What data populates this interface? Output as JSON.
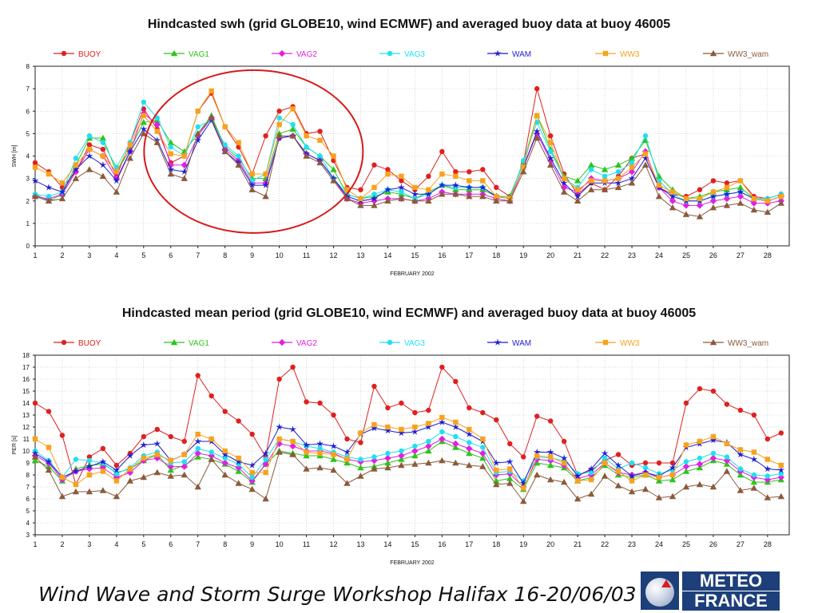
{
  "chart_data": [
    {
      "type": "line",
      "title": "Hindcasted swh (grid GLOBE10, wind ECMWF) and averaged buoy data at buoy 46005",
      "xlabel": "FEBRUARY 2002",
      "ylabel": "SWH [m]",
      "xlim": [
        1,
        28.8
      ],
      "ylim": [
        0,
        8
      ],
      "xticks": [
        1,
        2,
        3,
        4,
        5,
        6,
        7,
        8,
        9,
        10,
        11,
        12,
        13,
        14,
        15,
        16,
        17,
        18,
        19,
        20,
        21,
        22,
        23,
        24,
        25,
        26,
        27,
        28
      ],
      "yticks": [
        0,
        1,
        2,
        3,
        4,
        5,
        6,
        7,
        8
      ],
      "grid": true,
      "legend": "top",
      "annotation": "red ellipse around Feb 6 - Feb 12",
      "x": [
        1,
        1.5,
        2,
        2.5,
        3,
        3.5,
        4,
        4.5,
        5,
        5.5,
        6,
        6.5,
        7,
        7.5,
        8,
        8.5,
        9,
        9.5,
        10,
        10.5,
        11,
        11.5,
        12,
        12.5,
        13,
        13.5,
        14,
        14.5,
        15,
        15.5,
        16,
        16.5,
        17,
        17.5,
        18,
        18.5,
        19,
        19.5,
        20,
        20.5,
        21,
        21.5,
        22,
        22.5,
        23,
        23.5,
        24,
        24.5,
        25,
        25.5,
        26,
        26.5,
        27,
        27.5,
        28,
        28.5
      ],
      "series": [
        {
          "name": "BUOY",
          "color": "#e02020",
          "marker": "circle",
          "values": [
            3.7,
            3.3,
            2.6,
            3.3,
            4.5,
            4.3,
            3.1,
            4.6,
            6.1,
            5.2,
            3.7,
            4.0,
            6.0,
            6.8,
            5.3,
            4.4,
            3.2,
            4.9,
            6.0,
            6.2,
            5.0,
            5.1,
            3.8,
            2.6,
            2.5,
            3.6,
            3.4,
            2.9,
            2.5,
            3.1,
            4.2,
            3.3,
            3.3,
            3.4,
            2.6,
            2.2,
            3.7,
            7.0,
            4.9,
            3.2,
            2.3,
            2.8,
            2.5,
            3.1,
            3.9,
            4.1,
            2.6,
            2.3,
            2.2,
            2.5,
            2.9,
            2.8,
            2.9,
            2.2,
            2.1,
            2.3
          ]
        },
        {
          "name": "VAG1",
          "color": "#2ec41e",
          "marker": "triangle",
          "values": [
            2.3,
            2.0,
            2.3,
            3.6,
            4.8,
            4.8,
            3.3,
            4.3,
            5.5,
            5.6,
            4.6,
            4.2,
            5.0,
            5.8,
            4.4,
            3.9,
            3.0,
            3.0,
            5.0,
            5.2,
            4.4,
            4.0,
            3.4,
            2.3,
            2.1,
            2.2,
            2.4,
            2.3,
            2.1,
            2.4,
            2.7,
            2.5,
            2.5,
            2.5,
            2.2,
            2.2,
            3.7,
            5.8,
            4.3,
            3.1,
            2.9,
            3.6,
            3.4,
            3.6,
            3.9,
            4.7,
            3.1,
            2.5,
            2.1,
            2.2,
            2.4,
            2.5,
            2.6,
            2.1,
            2.1,
            2.3
          ]
        },
        {
          "name": "VAG2",
          "color": "#e020e0",
          "marker": "diamond",
          "values": [
            2.2,
            2.1,
            2.3,
            3.3,
            4.3,
            4.0,
            3.0,
            4.2,
            5.9,
            5.4,
            3.6,
            3.6,
            4.9,
            5.7,
            4.3,
            3.8,
            2.8,
            2.8,
            4.8,
            4.9,
            4.1,
            3.8,
            3.0,
            2.1,
            1.9,
            2.0,
            2.1,
            2.1,
            2.0,
            2.1,
            2.4,
            2.3,
            2.3,
            2.3,
            2.1,
            2.0,
            3.5,
            5.0,
            3.8,
            2.6,
            2.4,
            3.0,
            2.9,
            3.0,
            3.3,
            4.2,
            2.6,
            2.0,
            1.8,
            1.8,
            2.0,
            2.1,
            2.2,
            1.9,
            1.9,
            2.0
          ]
        },
        {
          "name": "VAG3",
          "color": "#20e0f0",
          "marker": "circle",
          "values": [
            2.3,
            2.2,
            2.4,
            3.9,
            4.9,
            4.6,
            3.5,
            4.6,
            6.4,
            5.7,
            4.4,
            4.0,
            5.3,
            5.6,
            4.5,
            4.0,
            2.9,
            3.2,
            5.7,
            5.4,
            4.4,
            4.0,
            3.0,
            2.3,
            2.1,
            2.3,
            2.5,
            2.4,
            2.1,
            2.3,
            2.7,
            2.6,
            2.6,
            2.6,
            2.2,
            2.1,
            3.8,
            5.5,
            4.2,
            3.0,
            2.6,
            3.4,
            3.1,
            3.3,
            3.7,
            4.9,
            2.9,
            2.3,
            2.0,
            2.0,
            2.2,
            2.3,
            2.4,
            2.1,
            2.1,
            2.3
          ]
        },
        {
          "name": "WAM",
          "color": "#1f1fd0",
          "marker": "star",
          "values": [
            2.9,
            2.6,
            2.4,
            3.4,
            4.0,
            3.6,
            2.9,
            4.2,
            5.2,
            4.7,
            3.4,
            3.3,
            4.7,
            5.6,
            4.2,
            3.7,
            2.7,
            2.7,
            4.8,
            4.9,
            4.1,
            3.8,
            3.0,
            2.2,
            2.0,
            2.1,
            2.5,
            2.6,
            2.3,
            2.3,
            2.7,
            2.7,
            2.6,
            2.6,
            2.2,
            2.1,
            3.5,
            5.1,
            3.9,
            2.8,
            2.2,
            2.8,
            2.8,
            2.8,
            3.0,
            3.9,
            2.6,
            2.2,
            2.0,
            2.0,
            2.2,
            2.3,
            2.4,
            2.1,
            2.0,
            2.2
          ]
        },
        {
          "name": "WW3",
          "color": "#f7a21e",
          "marker": "square",
          "values": [
            3.5,
            3.2,
            2.8,
            3.6,
            4.3,
            4.0,
            3.3,
            4.5,
            5.8,
            5.1,
            4.1,
            4.0,
            6.0,
            6.9,
            5.3,
            4.6,
            3.2,
            3.2,
            5.4,
            6.1,
            4.9,
            4.7,
            4.0,
            2.5,
            2.1,
            2.6,
            3.2,
            3.1,
            2.6,
            2.5,
            3.2,
            3.1,
            2.9,
            2.9,
            2.2,
            2.1,
            3.5,
            5.8,
            4.6,
            3.0,
            2.5,
            2.9,
            2.9,
            3.0,
            3.5,
            4.1,
            2.7,
            2.4,
            2.1,
            2.1,
            2.4,
            2.6,
            2.9,
            2.1,
            2.0,
            2.2
          ]
        },
        {
          "name": "WW3_wam",
          "color": "#8b5a3c",
          "marker": "triangle",
          "values": [
            2.2,
            2.0,
            2.1,
            3.0,
            3.4,
            3.1,
            2.4,
            3.9,
            5.0,
            4.6,
            3.2,
            3.0,
            5.0,
            5.7,
            4.2,
            3.6,
            2.5,
            2.2,
            4.9,
            4.9,
            4.0,
            3.7,
            2.9,
            2.1,
            1.8,
            1.8,
            2.0,
            2.1,
            2.0,
            2.0,
            2.3,
            2.3,
            2.2,
            2.2,
            2.0,
            2.0,
            3.3,
            4.8,
            3.6,
            2.4,
            2.0,
            2.5,
            2.5,
            2.6,
            2.8,
            3.6,
            2.2,
            1.7,
            1.4,
            1.3,
            1.7,
            1.8,
            1.9,
            1.6,
            1.5,
            1.9
          ]
        }
      ]
    },
    {
      "type": "line",
      "title": "Hindcasted mean period (grid GLOBE10, wind ECMWF) and averaged buoy data at buoy 46005",
      "xlabel": "FEBRUARY 2002",
      "ylabel": "PER [s]",
      "xlim": [
        1,
        28.8
      ],
      "ylim": [
        3,
        18
      ],
      "xticks": [
        1,
        2,
        3,
        4,
        5,
        6,
        7,
        8,
        9,
        10,
        11,
        12,
        13,
        14,
        15,
        16,
        17,
        18,
        19,
        20,
        21,
        22,
        23,
        24,
        25,
        26,
        27,
        28
      ],
      "yticks": [
        3,
        4,
        5,
        6,
        7,
        8,
        9,
        10,
        11,
        12,
        13,
        14,
        15,
        16,
        17,
        18
      ],
      "grid": true,
      "legend": "top",
      "x": [
        1,
        1.5,
        2,
        2.5,
        3,
        3.5,
        4,
        4.5,
        5,
        5.5,
        6,
        6.5,
        7,
        7.5,
        8,
        8.5,
        9,
        9.5,
        10,
        10.5,
        11,
        11.5,
        12,
        12.5,
        13,
        13.5,
        14,
        14.5,
        15,
        15.5,
        16,
        16.5,
        17,
        17.5,
        18,
        18.5,
        19,
        19.5,
        20,
        20.5,
        21,
        21.5,
        22,
        22.5,
        23,
        23.5,
        24,
        24.5,
        25,
        25.5,
        26,
        26.5,
        27,
        27.5,
        28,
        28.5
      ],
      "series": [
        {
          "name": "BUOY",
          "color": "#e02020",
          "marker": "circle",
          "values": [
            14.0,
            13.3,
            11.3,
            7.2,
            9.5,
            10.2,
            8.8,
            9.8,
            11.2,
            11.8,
            11.2,
            10.8,
            16.3,
            14.6,
            13.3,
            12.5,
            11.4,
            9.5,
            16.0,
            17.0,
            14.1,
            14.0,
            13.0,
            11.0,
            10.7,
            15.4,
            13.6,
            14.0,
            13.2,
            13.4,
            17.0,
            15.8,
            13.6,
            13.2,
            12.6,
            10.6,
            9.5,
            12.9,
            12.5,
            10.8,
            8.0,
            8.4,
            9.2,
            9.7,
            8.8,
            9.0,
            9.0,
            9.0,
            14.0,
            15.2,
            15.0,
            13.9,
            13.4,
            13.0,
            11.0,
            11.5
          ]
        },
        {
          "name": "VAG1",
          "color": "#2ec41e",
          "marker": "triangle",
          "values": [
            9.2,
            8.7,
            7.5,
            8.5,
            8.8,
            8.9,
            8.2,
            8.5,
            9.2,
            9.7,
            8.4,
            8.8,
            9.5,
            9.3,
            8.9,
            8.3,
            7.4,
            8.9,
            10.0,
            9.8,
            9.6,
            9.6,
            9.3,
            9.0,
            8.6,
            8.7,
            9.0,
            9.3,
            9.6,
            10.0,
            10.8,
            10.3,
            9.8,
            9.4,
            7.5,
            7.7,
            6.8,
            9.0,
            8.8,
            8.6,
            7.5,
            7.8,
            8.8,
            8.0,
            7.8,
            8.0,
            7.5,
            7.6,
            8.3,
            8.6,
            9.2,
            8.9,
            8.0,
            7.4,
            7.4,
            7.6
          ]
        },
        {
          "name": "VAG2",
          "color": "#e020e0",
          "marker": "diamond",
          "values": [
            9.6,
            9.0,
            7.6,
            8.3,
            8.5,
            8.6,
            7.8,
            8.2,
            9.2,
            9.4,
            8.7,
            8.7,
            9.8,
            9.6,
            9.0,
            8.6,
            7.5,
            8.9,
            10.6,
            10.4,
            10.0,
            10.0,
            9.8,
            9.3,
            9.1,
            9.2,
            9.4,
            9.6,
            10.0,
            10.4,
            11.0,
            10.6,
            10.2,
            9.8,
            8.0,
            8.1,
            7.0,
            9.3,
            9.2,
            8.8,
            7.7,
            8.0,
            9.0,
            8.2,
            8.0,
            8.2,
            7.8,
            8.0,
            8.7,
            8.9,
            9.4,
            9.2,
            8.3,
            7.8,
            7.6,
            7.8
          ]
        },
        {
          "name": "VAG3",
          "color": "#20e0f0",
          "marker": "circle",
          "values": [
            10.0,
            9.2,
            7.8,
            9.3,
            9.2,
            9.0,
            8.1,
            8.6,
            9.6,
            9.9,
            9.0,
            9.1,
            10.2,
            9.9,
            9.4,
            8.9,
            7.8,
            9.3,
            11.0,
            10.8,
            10.4,
            10.2,
            9.9,
            9.5,
            9.3,
            9.5,
            9.8,
            10.0,
            10.4,
            10.8,
            11.6,
            11.2,
            10.7,
            10.3,
            8.2,
            8.3,
            7.5,
            9.5,
            9.4,
            9.2,
            8.1,
            8.2,
            9.4,
            8.5,
            9.0,
            8.6,
            8.1,
            8.4,
            9.1,
            9.4,
            9.8,
            9.5,
            8.5,
            8.0,
            7.9,
            8.1
          ]
        },
        {
          "name": "WAM",
          "color": "#1f1fd0",
          "marker": "star",
          "values": [
            9.8,
            9.1,
            7.8,
            8.3,
            8.7,
            9.1,
            8.4,
            9.6,
            10.5,
            10.6,
            9.2,
            9.7,
            10.8,
            10.8,
            9.7,
            9.1,
            8.8,
            9.8,
            12.0,
            11.8,
            10.5,
            10.6,
            10.4,
            9.9,
            11.4,
            11.9,
            11.7,
            11.5,
            11.6,
            12.0,
            12.4,
            12.0,
            11.4,
            10.8,
            9.0,
            9.1,
            7.3,
            9.9,
            9.9,
            9.4,
            7.9,
            8.5,
            9.8,
            8.8,
            7.9,
            8.2,
            7.9,
            8.6,
            10.3,
            10.6,
            10.9,
            10.7,
            9.7,
            9.3,
            8.5,
            8.4
          ]
        },
        {
          "name": "WW3",
          "color": "#f7a21e",
          "marker": "square",
          "values": [
            11.0,
            10.3,
            7.8,
            7.2,
            8.0,
            8.3,
            7.5,
            8.5,
            9.4,
            9.7,
            9.2,
            9.7,
            11.4,
            11.0,
            10.0,
            9.4,
            8.2,
            8.2,
            11.0,
            10.8,
            9.9,
            9.8,
            9.7,
            9.3,
            11.5,
            12.2,
            12.0,
            11.8,
            12.0,
            12.3,
            12.8,
            12.4,
            11.8,
            11.0,
            8.4,
            8.5,
            6.9,
            9.6,
            9.5,
            9.0,
            7.5,
            7.6,
            9.0,
            8.3,
            7.5,
            8.0,
            7.8,
            8.0,
            10.5,
            10.8,
            11.2,
            10.6,
            10.1,
            9.9,
            9.3,
            8.8
          ]
        },
        {
          "name": "WW3_wam",
          "color": "#8b5a3c",
          "marker": "triangle",
          "values": [
            9.5,
            8.4,
            6.2,
            6.6,
            6.6,
            6.7,
            6.2,
            7.5,
            7.8,
            8.2,
            7.9,
            8.0,
            7.0,
            9.3,
            8.0,
            7.3,
            6.8,
            6.0,
            9.9,
            9.7,
            8.5,
            8.6,
            8.4,
            7.3,
            7.9,
            8.5,
            8.6,
            8.8,
            8.9,
            9.0,
            9.2,
            9.0,
            8.8,
            8.7,
            7.2,
            7.3,
            5.8,
            8.0,
            7.6,
            7.4,
            6.0,
            6.4,
            7.9,
            7.1,
            6.6,
            6.8,
            6.1,
            6.2,
            7.0,
            7.2,
            7.0,
            8.3,
            6.7,
            6.9,
            6.1,
            6.2
          ]
        }
      ]
    }
  ],
  "footer": {
    "text": "Wind Wave and Storm Surge Workshop Halifax 16-20/06/03"
  },
  "logo": {
    "line1": "METEO",
    "line2": "FRANCE"
  }
}
